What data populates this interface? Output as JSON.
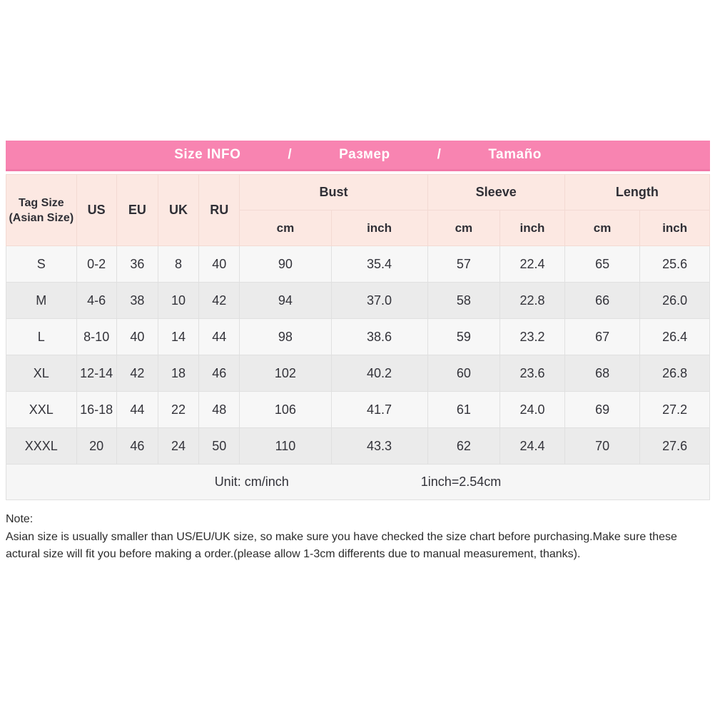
{
  "banner": {
    "title_en": "Size INFO",
    "separator1": "/",
    "title_ru": "Размер",
    "separator2": "/",
    "title_es": "Tamaño"
  },
  "table": {
    "header": {
      "tag_size_line1": "Tag Size",
      "tag_size_line2": "(Asian Size)",
      "regions": [
        "US",
        "EU",
        "UK",
        "RU"
      ],
      "groups": [
        {
          "label": "Bust",
          "sub": [
            "cm",
            "inch"
          ]
        },
        {
          "label": "Sleeve",
          "sub": [
            "cm",
            "inch"
          ]
        },
        {
          "label": "Length",
          "sub": [
            "cm",
            "inch"
          ]
        }
      ]
    },
    "rows": [
      {
        "tag": "S",
        "us": "0-2",
        "eu": "36",
        "uk": "8",
        "ru": "40",
        "bust_cm": "90",
        "bust_inch": "35.4",
        "sleeve_cm": "57",
        "sleeve_inch": "22.4",
        "length_cm": "65",
        "length_inch": "25.6"
      },
      {
        "tag": "M",
        "us": "4-6",
        "eu": "38",
        "uk": "10",
        "ru": "42",
        "bust_cm": "94",
        "bust_inch": "37.0",
        "sleeve_cm": "58",
        "sleeve_inch": "22.8",
        "length_cm": "66",
        "length_inch": "26.0"
      },
      {
        "tag": "L",
        "us": "8-10",
        "eu": "40",
        "uk": "14",
        "ru": "44",
        "bust_cm": "98",
        "bust_inch": "38.6",
        "sleeve_cm": "59",
        "sleeve_inch": "23.2",
        "length_cm": "67",
        "length_inch": "26.4"
      },
      {
        "tag": "XL",
        "us": "12-14",
        "eu": "42",
        "uk": "18",
        "ru": "46",
        "bust_cm": "102",
        "bust_inch": "40.2",
        "sleeve_cm": "60",
        "sleeve_inch": "23.6",
        "length_cm": "68",
        "length_inch": "26.8"
      },
      {
        "tag": "XXL",
        "us": "16-18",
        "eu": "44",
        "uk": "22",
        "ru": "48",
        "bust_cm": "106",
        "bust_inch": "41.7",
        "sleeve_cm": "61",
        "sleeve_inch": "24.0",
        "length_cm": "69",
        "length_inch": "27.2"
      },
      {
        "tag": "XXXL",
        "us": "20",
        "eu": "46",
        "uk": "24",
        "ru": "50",
        "bust_cm": "110",
        "bust_inch": "43.3",
        "sleeve_cm": "62",
        "sleeve_inch": "24.4",
        "length_cm": "70",
        "length_inch": "27.6"
      }
    ],
    "footer": {
      "unit": "Unit: cm/inch",
      "conversion": "1inch=2.54cm"
    }
  },
  "note": {
    "title": "Note:",
    "body": "Asian size is usually smaller than US/EU/UK size, so make sure you have checked the size chart before purchasing.Make sure these actural size will fit you before making a order.(please allow 1-3cm differents due to manual measurement, thanks)."
  },
  "colors": {
    "banner_bg": "#f884b1",
    "banner_edge": "#f178a8",
    "header_bg": "#fce8e2",
    "row_light": "#f7f7f7",
    "row_dark": "#ebebeb",
    "unit_bg": "#f6f6f6",
    "grid_border": "#e0e0e0",
    "banner_text": "#ffffff",
    "text_dark": "#33333a"
  }
}
